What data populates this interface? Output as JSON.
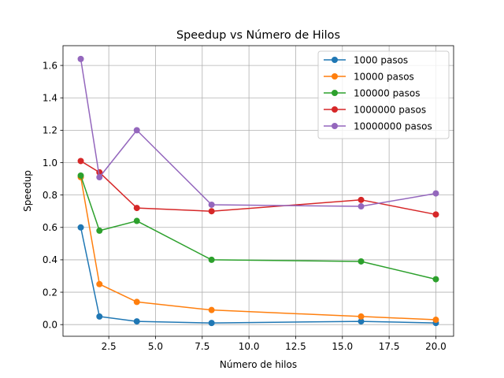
{
  "chart_data": {
    "type": "line",
    "title": "Speedup vs Número de Hilos",
    "xlabel": "Número de hilos",
    "ylabel": "Speedup",
    "xlim": [
      0.05,
      20.95
    ],
    "ylim": [
      -0.072,
      1.722
    ],
    "x_ticks": [
      2.5,
      5.0,
      7.5,
      10.0,
      12.5,
      15.0,
      17.5,
      20.0
    ],
    "x_tick_labels": [
      "2.5",
      "5.0",
      "7.5",
      "10.0",
      "12.5",
      "15.0",
      "17.5",
      "20.0"
    ],
    "y_ticks": [
      0.0,
      0.2,
      0.4,
      0.6,
      0.8,
      1.0,
      1.2,
      1.4,
      1.6
    ],
    "y_tick_labels": [
      "0.0",
      "0.2",
      "0.4",
      "0.6",
      "0.8",
      "1.0",
      "1.2",
      "1.4",
      "1.6"
    ],
    "grid": true,
    "legend_position": "top-right",
    "x": [
      1,
      2,
      4,
      8,
      16,
      20
    ],
    "series": [
      {
        "name": "1000 pasos",
        "color": "#1f77b4",
        "values": [
          0.6,
          0.05,
          0.02,
          0.01,
          0.02,
          0.01
        ]
      },
      {
        "name": "10000 pasos",
        "color": "#ff7f0e",
        "values": [
          0.91,
          0.25,
          0.14,
          0.09,
          0.05,
          0.03
        ]
      },
      {
        "name": "100000 pasos",
        "color": "#2ca02c",
        "values": [
          0.92,
          0.58,
          0.64,
          0.4,
          0.39,
          0.28
        ]
      },
      {
        "name": "1000000 pasos",
        "color": "#d62728",
        "values": [
          1.01,
          0.94,
          0.72,
          0.7,
          0.77,
          0.68
        ]
      },
      {
        "name": "10000000 pasos",
        "color": "#9467bd",
        "values": [
          1.64,
          0.91,
          1.2,
          0.74,
          0.73,
          0.81
        ]
      }
    ]
  }
}
